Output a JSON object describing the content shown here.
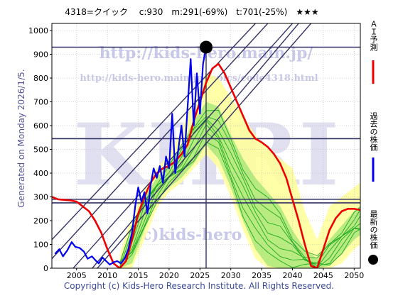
{
  "title": "4318=クイック　 c:930　m:291(-69%)　t:701(-25%)　★★★",
  "generated": "Generated on Monday 2026/1/5.",
  "copyright": "Copyright (c) Kids-Hero Research Institute. All Rights Reserved.",
  "watermark_url1": "http://kids-hero.main.jp/",
  "watermark_url2": "http://kids-hero.main.jp/topics/code4318.html",
  "watermark_big": "KHRI",
  "watermark_bottom": "c)kids-hero",
  "legend": {
    "ai_label": "ＡＩ予測",
    "past_label": "過去の株価",
    "latest_label": "最新の株価"
  },
  "colors": {
    "past": "#0000ee",
    "ai": "#ee0000",
    "trend": "#333366",
    "band_outer": "#ffff99",
    "band_inner": "#88dd66",
    "band_line": "#22aa22"
  },
  "chart_data": {
    "type": "line",
    "x_ticks": [
      2005,
      2010,
      2015,
      2020,
      2025,
      2030,
      2035,
      2040,
      2045,
      2050
    ],
    "y_ticks": [
      0,
      100,
      200,
      300,
      400,
      500,
      600,
      700,
      800,
      900,
      1000
    ],
    "xlim": [
      2001,
      2051
    ],
    "ylim": [
      0,
      1030
    ],
    "hlines": [
      930,
      545,
      290,
      275
    ],
    "vline": 2026,
    "latest_point": {
      "x": 2026.0,
      "y": 930
    },
    "past_series": {
      "x": [
        2001.5,
        2002.2,
        2002.8,
        2003.5,
        2004.2,
        2004.8,
        2005.5,
        2006.2,
        2006.8,
        2007.5,
        2008.0,
        2008.6,
        2009.2,
        2009.8,
        2010.4,
        2011.0,
        2011.6,
        2012.2,
        2012.8,
        2013.4,
        2014.0,
        2014.5,
        2015.0,
        2015.5,
        2016.0,
        2016.5,
        2017.0,
        2017.5,
        2018.0,
        2018.5,
        2019.0,
        2019.5,
        2020.0,
        2020.5,
        2021.0,
        2021.5,
        2022.0,
        2022.5,
        2023.0,
        2023.5,
        2024.0,
        2024.5,
        2025.0,
        2025.5,
        2026.0
      ],
      "y": [
        60,
        80,
        50,
        75,
        110,
        90,
        85,
        70,
        40,
        50,
        35,
        20,
        45,
        30,
        15,
        25,
        30,
        20,
        40,
        80,
        150,
        260,
        340,
        280,
        320,
        230,
        350,
        420,
        380,
        430,
        360,
        470,
        420,
        650,
        400,
        500,
        600,
        470,
        680,
        880,
        600,
        820,
        650,
        860,
        930
      ]
    },
    "ai_series": {
      "x": [
        2001,
        2002,
        2004,
        2005,
        2006,
        2007,
        2008,
        2009,
        2010,
        2011,
        2012,
        2013,
        2014,
        2015,
        2016,
        2017,
        2018,
        2019,
        2020,
        2021,
        2022,
        2023,
        2024,
        2025,
        2026,
        2027,
        2028,
        2029,
        2030,
        2031,
        2032,
        2033,
        2034,
        2035,
        2036,
        2037,
        2038,
        2039,
        2040,
        2041,
        2042,
        2043,
        2044,
        2045,
        2046,
        2047,
        2048,
        2049,
        2050,
        2051
      ],
      "y": [
        300,
        290,
        285,
        280,
        260,
        240,
        200,
        150,
        80,
        20,
        0,
        30,
        120,
        230,
        300,
        360,
        400,
        420,
        430,
        450,
        480,
        520,
        620,
        700,
        780,
        840,
        860,
        820,
        760,
        700,
        640,
        580,
        545,
        530,
        510,
        480,
        440,
        380,
        290,
        200,
        100,
        10,
        0,
        80,
        160,
        210,
        240,
        250,
        250,
        245
      ]
    },
    "trend_lines": [
      {
        "x0": 2001,
        "y0": -100,
        "x1": 2040,
        "y1": 1030
      },
      {
        "x0": 2003,
        "y0": -140,
        "x1": 2041,
        "y1": 1030
      },
      {
        "x0": 2001,
        "y0": 40,
        "x1": 2036,
        "y1": 1030
      },
      {
        "x0": 2001,
        "y0": 120,
        "x1": 2034,
        "y1": 1030
      },
      {
        "x0": 2005,
        "y0": -100,
        "x1": 2043,
        "y1": 1030
      }
    ],
    "band": {
      "x": [
        2012,
        2014,
        2016,
        2018,
        2020,
        2022,
        2024,
        2026,
        2028,
        2030,
        2032,
        2034,
        2036,
        2038,
        2040,
        2042,
        2044,
        2046,
        2048,
        2050,
        2051
      ],
      "outer_top": [
        60,
        220,
        330,
        420,
        480,
        580,
        720,
        820,
        800,
        720,
        640,
        560,
        500,
        460,
        420,
        240,
        120,
        260,
        300,
        340,
        360
      ],
      "outer_bot": [
        0,
        0,
        120,
        250,
        320,
        360,
        420,
        480,
        420,
        300,
        160,
        40,
        0,
        0,
        0,
        0,
        0,
        0,
        20,
        80,
        100
      ],
      "inner_top": [
        30,
        180,
        300,
        380,
        440,
        520,
        620,
        700,
        680,
        560,
        460,
        380,
        320,
        260,
        160,
        80,
        40,
        120,
        180,
        240,
        260
      ],
      "inner_bot": [
        0,
        20,
        160,
        280,
        340,
        380,
        440,
        520,
        460,
        340,
        200,
        80,
        10,
        0,
        0,
        0,
        0,
        10,
        60,
        120,
        140
      ]
    }
  }
}
